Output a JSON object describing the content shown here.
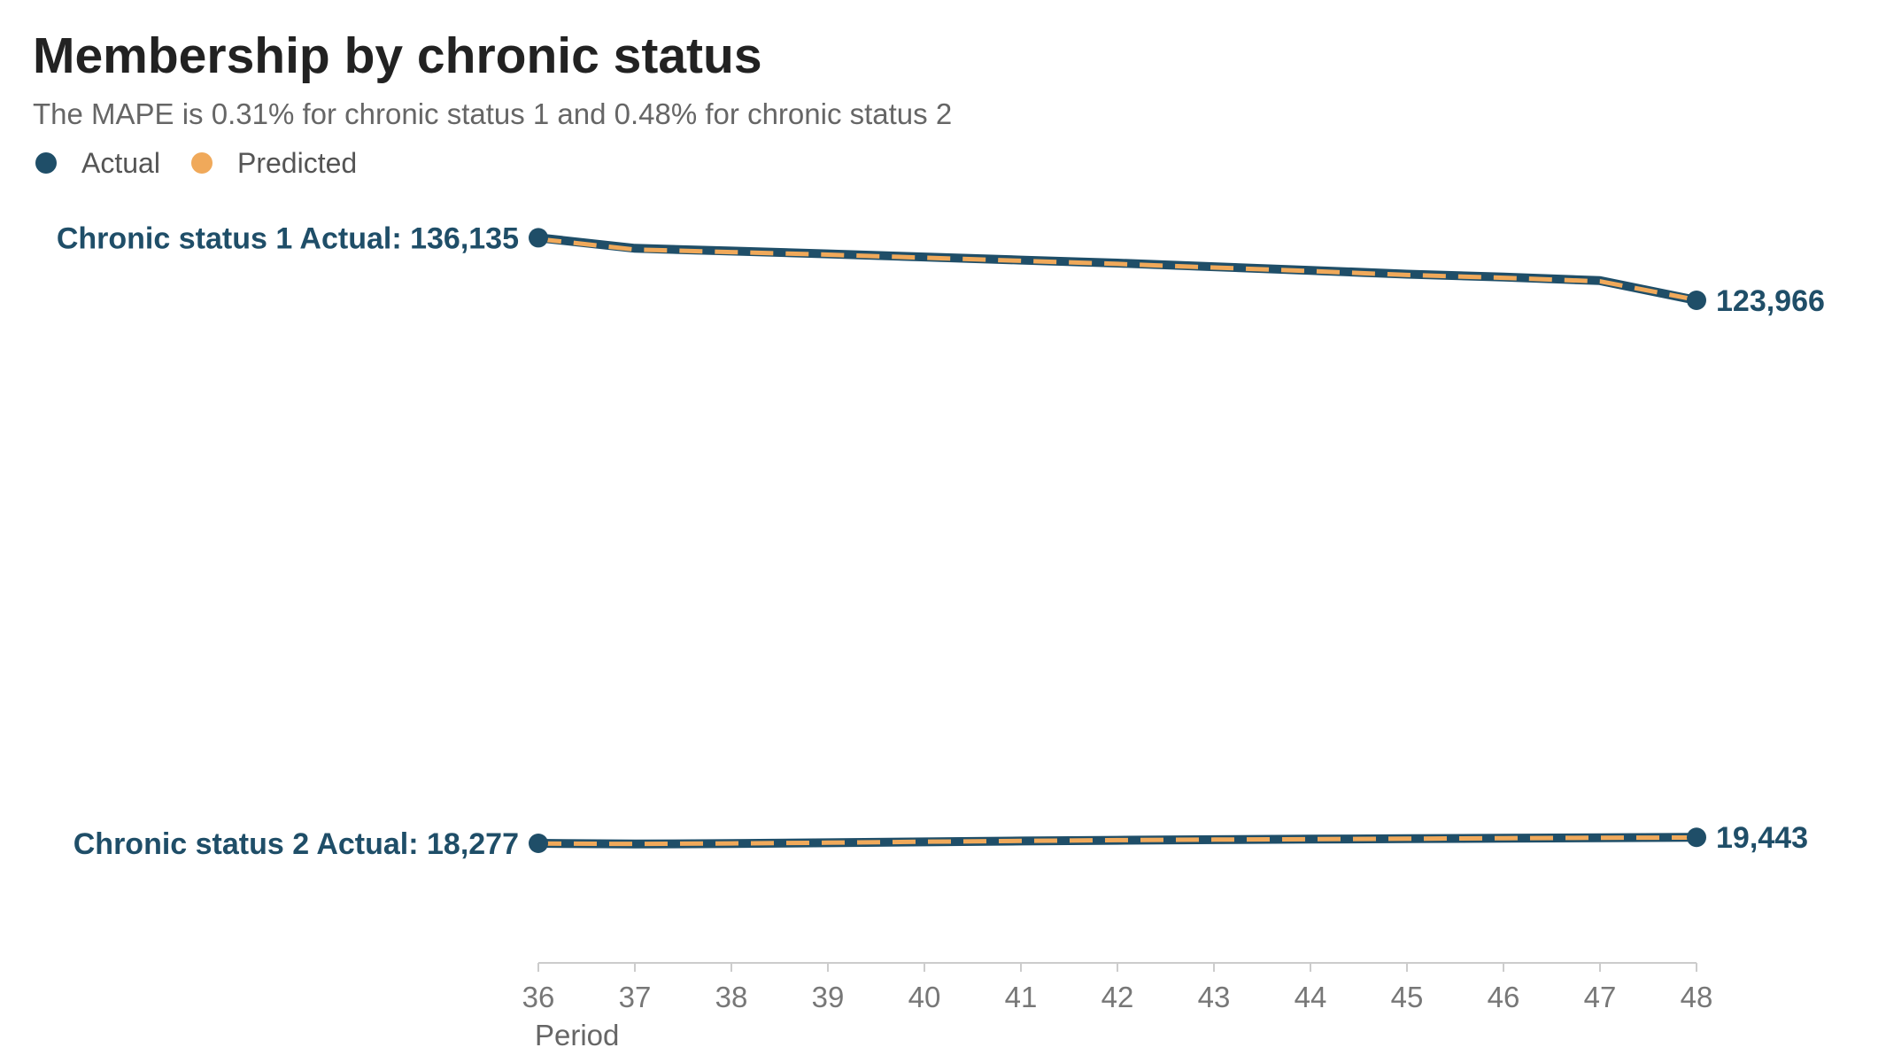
{
  "title": "Membership by chronic status",
  "subtitle": "The MAPE is 0.31% for chronic status 1 and 0.48% for chronic status 2",
  "legend": [
    {
      "label": "Actual",
      "color": "#1f4e68",
      "marker": "circle"
    },
    {
      "label": "Predicted",
      "color": "#f0a95a",
      "marker": "circle"
    }
  ],
  "colors": {
    "actual": "#1f4e68",
    "predicted": "#f0a95a",
    "axis": "#cccccc"
  },
  "chart_data": {
    "type": "line",
    "title": "Membership by chronic status",
    "subtitle": "The MAPE is 0.31% for chronic status 1 and 0.48% for chronic status 2",
    "xlabel": "Period",
    "ylabel": "",
    "x": [
      36,
      37,
      38,
      39,
      40,
      41,
      42,
      43,
      44,
      45,
      46,
      47,
      48
    ],
    "x_tick_labels": [
      "36",
      "37",
      "38",
      "39",
      "40",
      "41",
      "42",
      "43",
      "44",
      "45",
      "46",
      "47",
      "48"
    ],
    "xlim": [
      36,
      48
    ],
    "ylim": [
      0,
      150000
    ],
    "grid": false,
    "legend_position": "top-left",
    "y_axis_visible": false,
    "series": [
      {
        "name": "Actual",
        "group": "Chronic status 1",
        "style": "solid",
        "values": [
          136135,
          134080,
          133550,
          133000,
          132400,
          131800,
          131200,
          130500,
          129800,
          129050,
          128500,
          127800,
          123966
        ]
      },
      {
        "group": "Chronic status 1",
        "name": "Predicted",
        "style": "dashed",
        "values": [
          135900,
          133850,
          133350,
          132850,
          132250,
          131650,
          131050,
          130350,
          129650,
          128900,
          128350,
          127650,
          124050
        ]
      },
      {
        "name": "Actual",
        "group": "Chronic status 2",
        "style": "solid",
        "values": [
          18277,
          18140,
          18230,
          18380,
          18560,
          18720,
          18870,
          18990,
          19080,
          19170,
          19260,
          19350,
          19443
        ]
      },
      {
        "group": "Chronic status 2",
        "name": "Predicted",
        "style": "dashed",
        "values": [
          18240,
          18150,
          18260,
          18400,
          18580,
          18740,
          18890,
          19000,
          19090,
          19180,
          19270,
          19360,
          19400
        ]
      }
    ],
    "annotations": [
      {
        "series": "Chronic status 1",
        "side": "start",
        "text": "Chronic status 1 Actual: 136,135"
      },
      {
        "series": "Chronic status 1",
        "side": "end",
        "text": "123,966"
      },
      {
        "series": "Chronic status 2",
        "side": "start",
        "text": "Chronic status 2 Actual: 18,277"
      },
      {
        "series": "Chronic status 2",
        "side": "end",
        "text": "19,443"
      }
    ]
  }
}
